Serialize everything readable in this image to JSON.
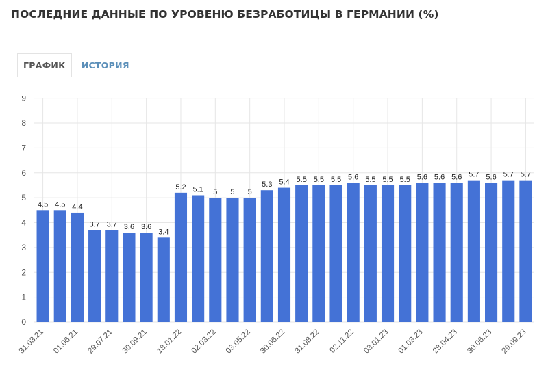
{
  "page": {
    "title": "ПОСЛЕДНИЕ ДАННЫЕ ПО УРОВЕНЮ БЕЗРАБОТИЦЫ В ГЕРМАНИИ (%)"
  },
  "tabs": [
    {
      "label": "ГРАФИК",
      "active": true
    },
    {
      "label": "ИСТОРИЯ",
      "active": false
    }
  ],
  "colors": {
    "bar": "#4472d6",
    "grid": "#e6e6e6",
    "axis_text": "#555555",
    "value_text": "#222222",
    "tab_link": "#5b8fb9"
  },
  "chart_data": {
    "type": "bar",
    "title": "",
    "xlabel": "",
    "ylabel": "",
    "ylim": [
      0,
      9
    ],
    "yticks": [
      0,
      1,
      2,
      3,
      4,
      5,
      6,
      7,
      8,
      9
    ],
    "values": [
      4.5,
      4.5,
      4.4,
      3.7,
      3.7,
      3.6,
      3.6,
      3.4,
      5.2,
      5.1,
      5,
      5,
      5,
      5.3,
      5.4,
      5.5,
      5.5,
      5.5,
      5.6,
      5.5,
      5.5,
      5.5,
      5.6,
      5.6,
      5.6,
      5.7,
      5.6,
      5.7,
      5.7
    ],
    "x_tick_labels": [
      {
        "index": 0,
        "label": "31.03.21"
      },
      {
        "index": 2,
        "label": "01.06.21"
      },
      {
        "index": 4,
        "label": "29.07.21"
      },
      {
        "index": 6,
        "label": "30.09.21"
      },
      {
        "index": 8,
        "label": "18.01.22"
      },
      {
        "index": 10,
        "label": "02.03.22"
      },
      {
        "index": 12,
        "label": "03.05.22"
      },
      {
        "index": 14,
        "label": "30.06.22"
      },
      {
        "index": 16,
        "label": "31.08.22"
      },
      {
        "index": 18,
        "label": "02.11.22"
      },
      {
        "index": 20,
        "label": "03.01.23"
      },
      {
        "index": 22,
        "label": "01.03.23"
      },
      {
        "index": 24,
        "label": "28.04.23"
      },
      {
        "index": 26,
        "label": "30.06.23"
      },
      {
        "index": 28,
        "label": "29.09.23"
      }
    ],
    "grid": true,
    "data_labels": true
  }
}
